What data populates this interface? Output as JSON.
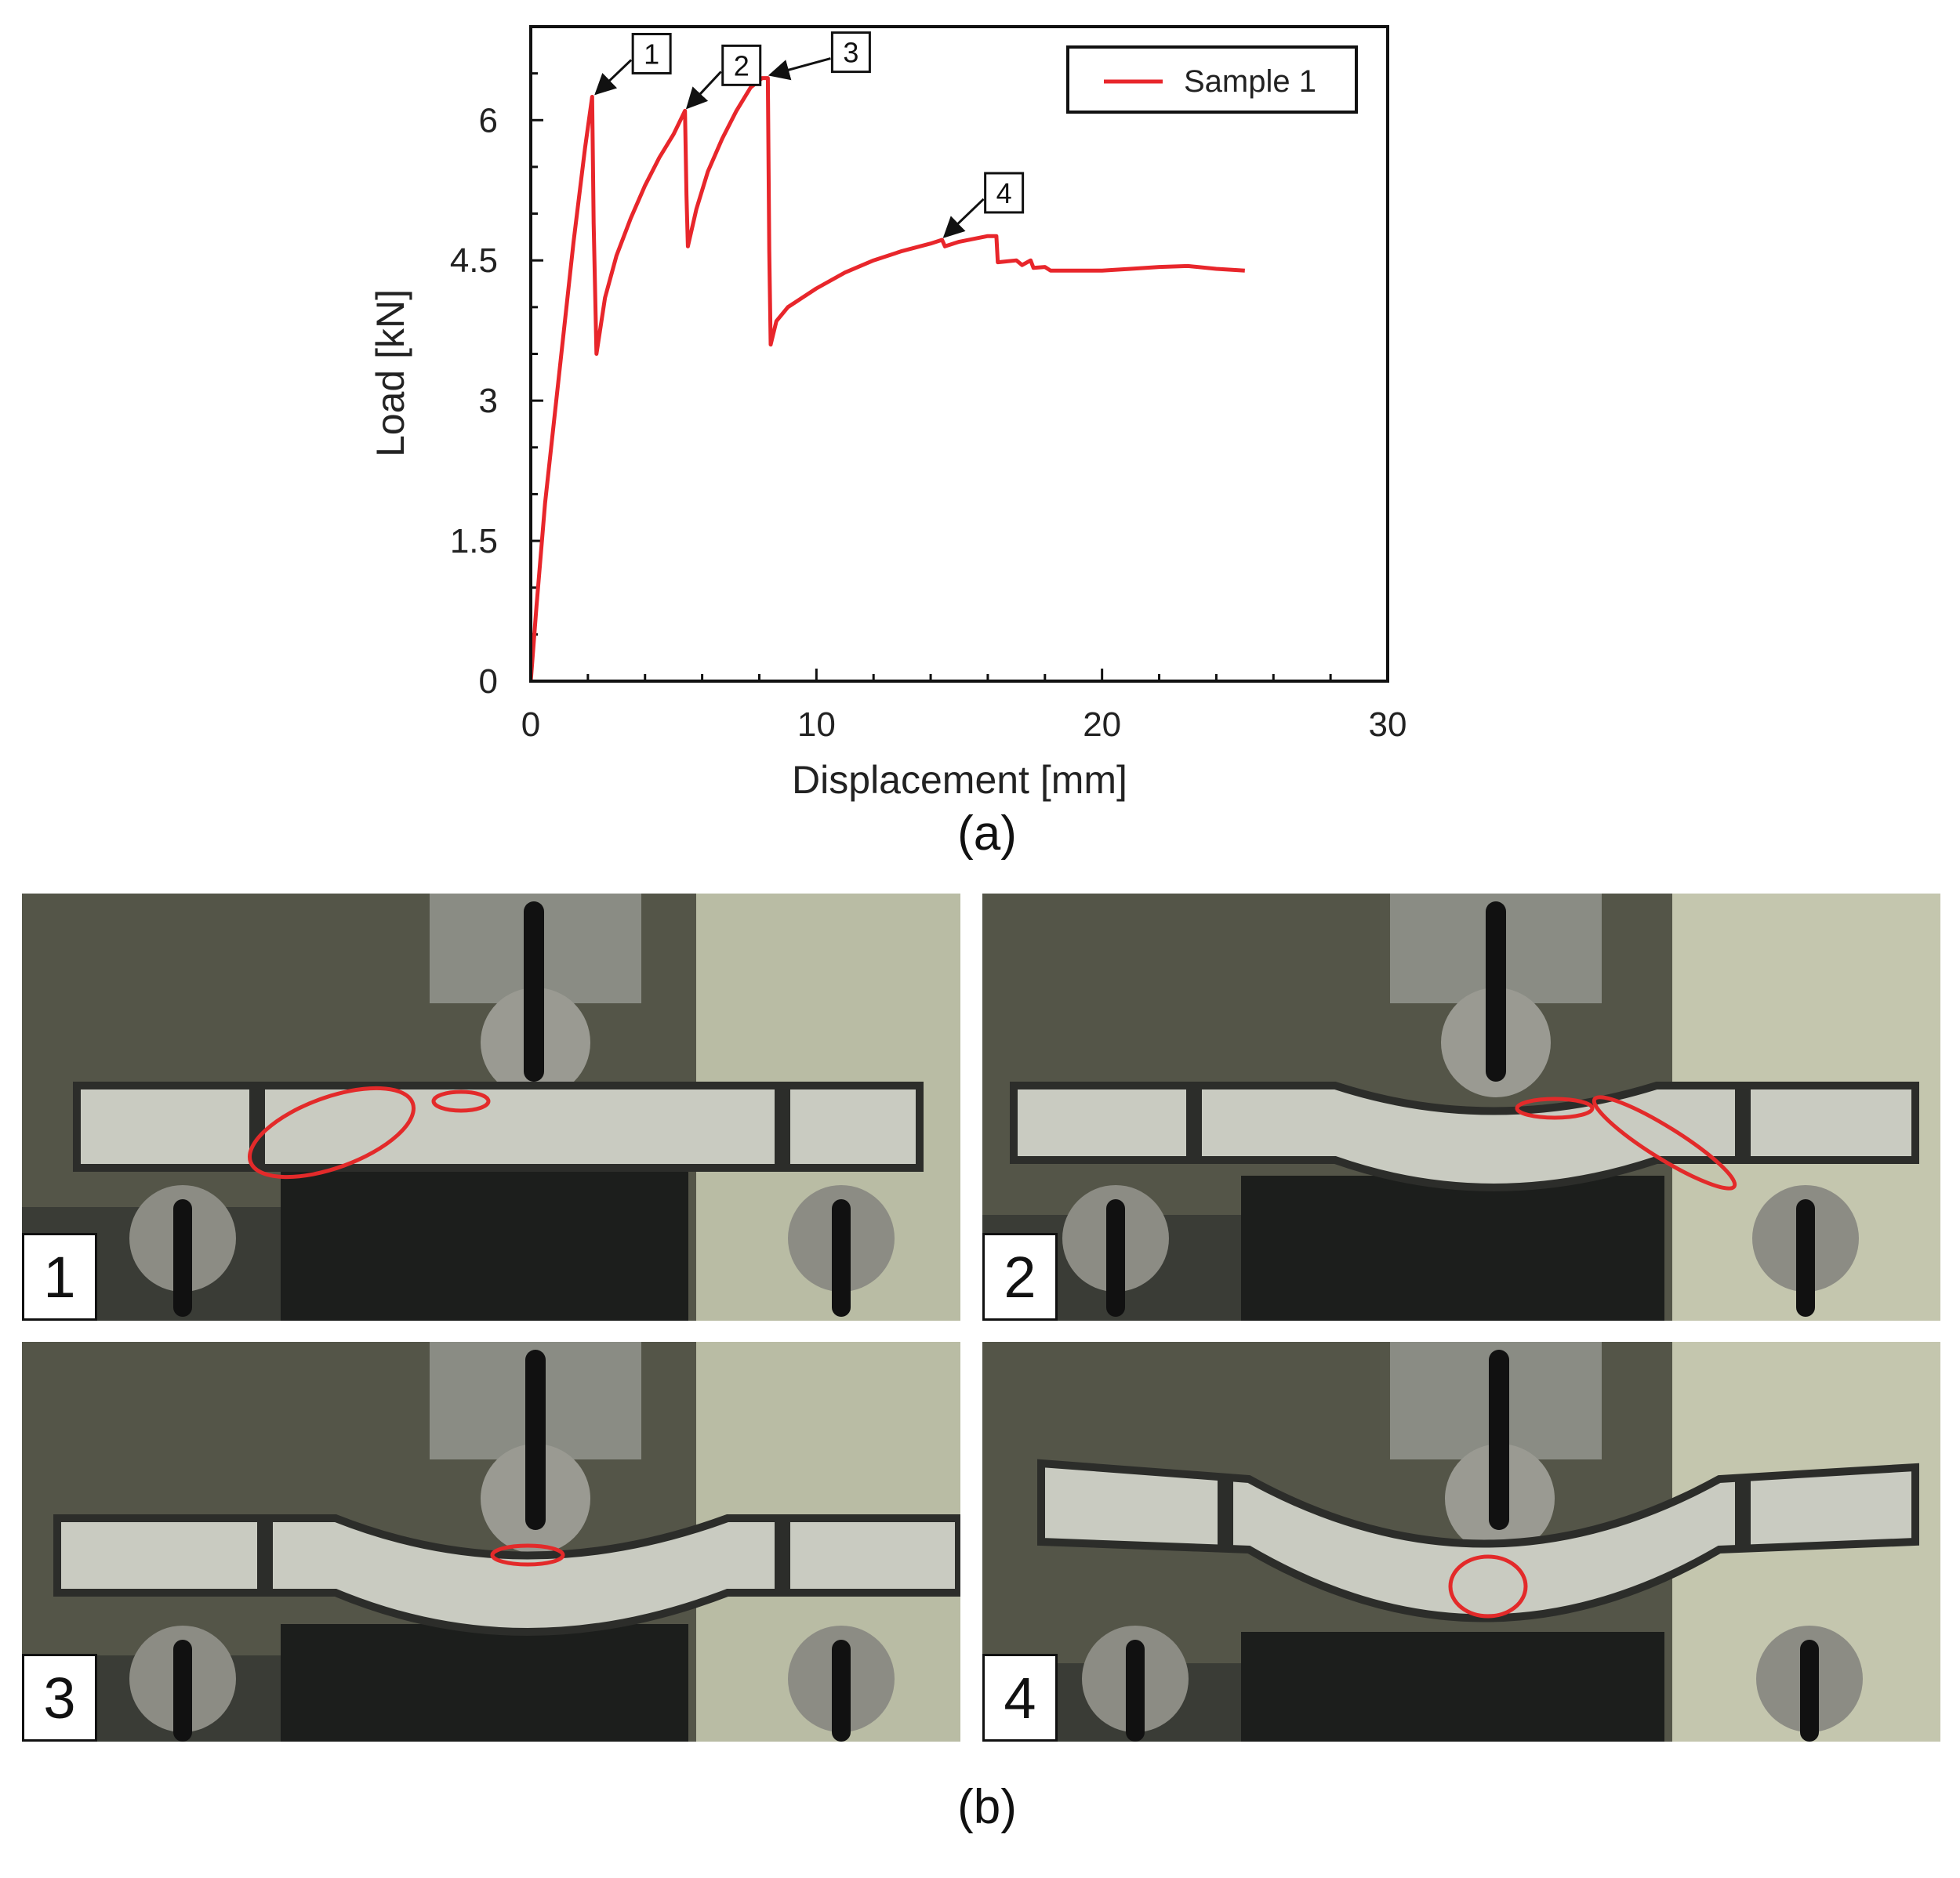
{
  "chart_data": {
    "type": "line",
    "xlabel": "Displacement [mm]",
    "ylabel": "Load [kN]",
    "xlim": [
      0,
      30
    ],
    "ylim": [
      0,
      7
    ],
    "x_ticks": [
      0,
      10,
      20,
      30
    ],
    "y_ticks": [
      0,
      1.5,
      3,
      4.5,
      6
    ],
    "y_tick_labels": [
      "0",
      "1.5",
      "3",
      "4.5",
      "6"
    ],
    "grid": false,
    "legend_position": "top-right",
    "series": [
      {
        "name": "Sample 1",
        "color": "#e8262b",
        "x": [
          0,
          0.2,
          0.5,
          1.0,
          1.5,
          1.9,
          2.15,
          2.2,
          2.3,
          2.6,
          3.0,
          3.5,
          4.0,
          4.5,
          5.0,
          5.4,
          5.45,
          5.5,
          5.8,
          6.2,
          6.7,
          7.2,
          7.7,
          8.1,
          8.3,
          8.35,
          8.4,
          8.6,
          9.0,
          10.0,
          11.0,
          12.0,
          13.0,
          14.0,
          14.4,
          14.5,
          15.0,
          16.0,
          16.3,
          16.35,
          17.0,
          17.2,
          17.5,
          17.6,
          18.0,
          18.2,
          19.0,
          20.0,
          21.0,
          22.0,
          23.0,
          24.0,
          25.0
        ],
        "y": [
          0,
          0.8,
          1.9,
          3.3,
          4.7,
          5.7,
          6.25,
          4.9,
          3.5,
          4.1,
          4.55,
          4.95,
          5.3,
          5.6,
          5.85,
          6.1,
          5.2,
          4.65,
          5.05,
          5.45,
          5.8,
          6.1,
          6.35,
          6.45,
          6.45,
          4.6,
          3.6,
          3.85,
          4.0,
          4.2,
          4.37,
          4.5,
          4.6,
          4.68,
          4.72,
          4.65,
          4.7,
          4.76,
          4.76,
          4.48,
          4.5,
          4.45,
          4.5,
          4.42,
          4.43,
          4.39,
          4.39,
          4.39,
          4.41,
          4.43,
          4.44,
          4.41,
          4.39
        ]
      }
    ],
    "annotations": [
      {
        "label": "1",
        "x": 2.2,
        "y": 6.25
      },
      {
        "label": "2",
        "x": 5.4,
        "y": 6.1
      },
      {
        "label": "3",
        "x": 8.3,
        "y": 6.45
      },
      {
        "label": "4",
        "x": 14.4,
        "y": 4.72
      }
    ]
  },
  "captions": {
    "a": "(a)",
    "b": "(b)"
  },
  "photos": [
    {
      "number": "1"
    },
    {
      "number": "2"
    },
    {
      "number": "3"
    },
    {
      "number": "4"
    }
  ]
}
